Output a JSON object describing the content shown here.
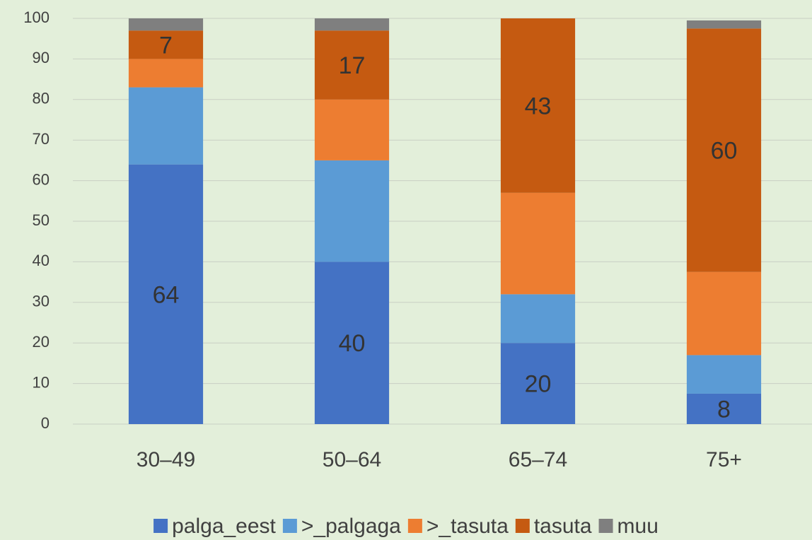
{
  "chart_data": {
    "type": "stacked_bar",
    "categories": [
      "30–49",
      "50–64",
      "65–74",
      "75+"
    ],
    "series": [
      {
        "name": "palga_eest",
        "color": "#4472c4",
        "values": [
          64,
          40,
          20,
          7.5
        ],
        "value_labels": [
          "64",
          "40",
          "20",
          "8"
        ]
      },
      {
        "name": ">_palgaga",
        "color": "#5b9bd5",
        "values": [
          19,
          25,
          12,
          9.5
        ],
        "value_labels": [
          null,
          null,
          null,
          null
        ]
      },
      {
        "name": ">_tasuta",
        "color": "#ed7d31",
        "values": [
          7,
          15,
          25,
          20.5
        ],
        "value_labels": [
          null,
          null,
          null,
          null
        ]
      },
      {
        "name": "tasuta",
        "color": "#c55a11",
        "values": [
          7,
          17,
          43,
          60
        ],
        "value_labels": [
          "7",
          "17",
          "43",
          "60"
        ]
      },
      {
        "name": "muu",
        "color": "#7f7f7f",
        "values": [
          3,
          3,
          0,
          2
        ],
        "value_labels": [
          null,
          null,
          null,
          null
        ]
      }
    ],
    "ylim": [
      0,
      100
    ],
    "yticks": [
      0,
      10,
      20,
      30,
      40,
      50,
      60,
      70,
      80,
      90,
      100
    ],
    "grid": true,
    "legend": "bottom"
  }
}
